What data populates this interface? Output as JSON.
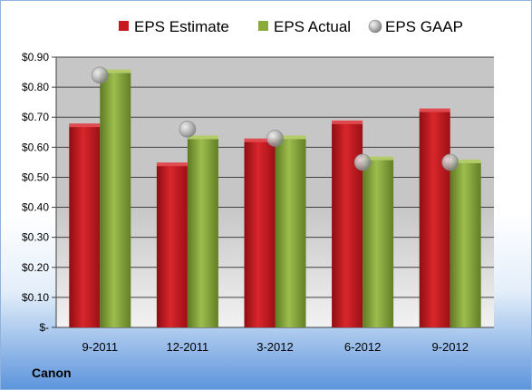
{
  "company_label": "Canon",
  "colors": {
    "estimate": "#c8171e",
    "actual": "#8aab3c",
    "gaap": "#b8b8b8",
    "plot_area": "#c9c9c9",
    "grid": "#404040"
  },
  "chart_data": {
    "type": "bar",
    "categories": [
      "9-2011",
      "12-2011",
      "3-2012",
      "6-2012",
      "9-2012"
    ],
    "series": [
      {
        "name": "EPS Estimate",
        "kind": "bar",
        "values": [
          0.67,
          0.54,
          0.62,
          0.68,
          0.72
        ]
      },
      {
        "name": "EPS Actual",
        "kind": "bar",
        "values": [
          0.85,
          0.63,
          0.63,
          0.56,
          0.55
        ]
      },
      {
        "name": "EPS GAAP",
        "kind": "marker",
        "values": [
          0.84,
          0.66,
          0.63,
          0.55,
          0.55
        ]
      }
    ],
    "ylim": [
      0,
      0.9
    ],
    "yticks": [
      0,
      0.1,
      0.2,
      0.3,
      0.4,
      0.5,
      0.6,
      0.7,
      0.8,
      0.9
    ],
    "ytick_labels": [
      "$-",
      "$0.10",
      "$0.20",
      "$0.30",
      "$0.40",
      "$0.50",
      "$0.60",
      "$0.70",
      "$0.80",
      "$0.90"
    ],
    "grid": true,
    "legend_position": "top"
  }
}
